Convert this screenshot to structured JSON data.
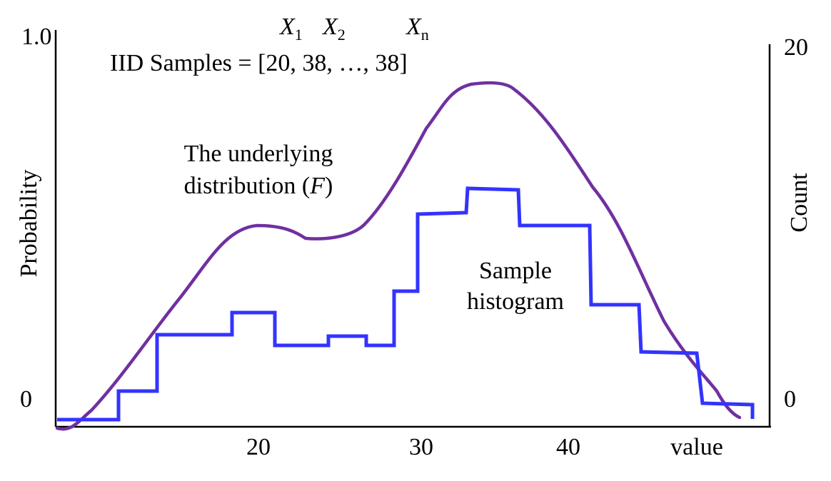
{
  "left_axis": {
    "label": "Probability",
    "top_tick": "1.0",
    "bottom_tick": "0"
  },
  "right_axis": {
    "label": "Count",
    "top_tick": "20",
    "bottom_tick": "0"
  },
  "x_axis": {
    "ticks": [
      "20",
      "30",
      "40"
    ],
    "label": "value"
  },
  "samples": {
    "vars": [
      {
        "letter": "X",
        "sub": "1"
      },
      {
        "letter": "X",
        "sub": "2"
      },
      {
        "letter": "X",
        "sub": "n"
      }
    ],
    "text": "IID Samples = [20, 38, …, 38]"
  },
  "distribution_label": {
    "line1": "The underlying",
    "line2_prefix": "distribution (",
    "symbol": "F",
    "line2_suffix": ")"
  },
  "histogram_label": {
    "line1": "Sample",
    "line2": "histogram"
  },
  "colors": {
    "distribution": "#7030a0",
    "histogram": "#3333ff",
    "axes": "#000000"
  }
}
